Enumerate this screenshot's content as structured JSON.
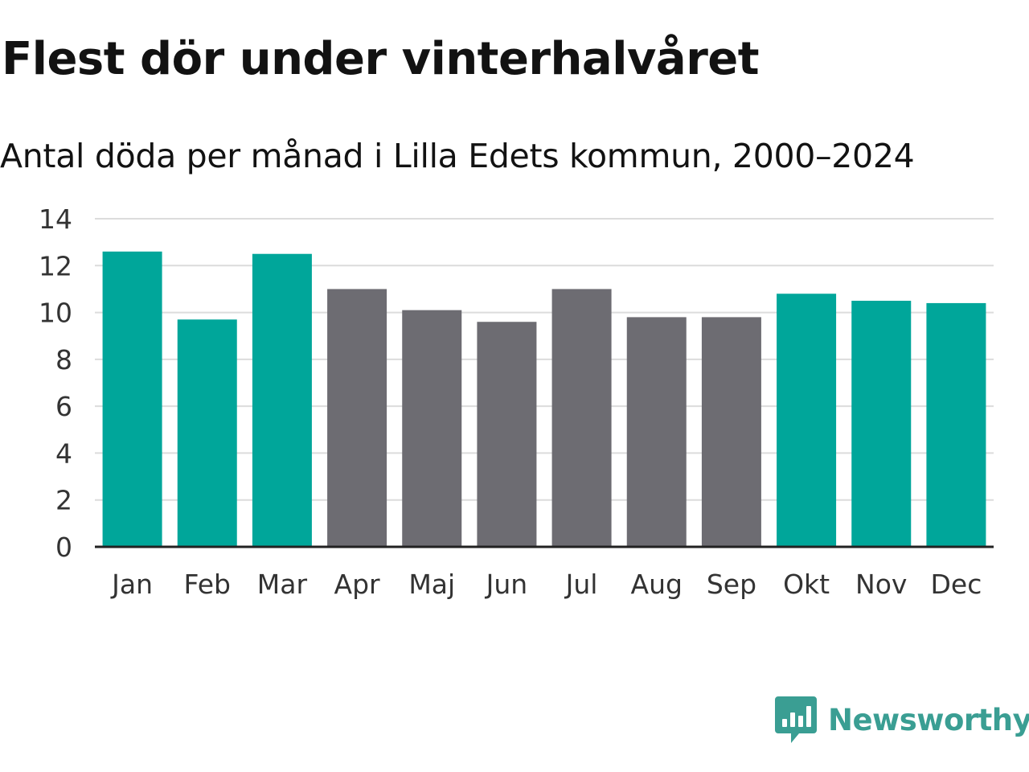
{
  "header": {
    "title": "Flest dör under vinterhalvåret",
    "subtitle": "Antal döda per månad i Lilla Edets kommun, 2000–2024"
  },
  "colors": {
    "winter": "#00a69a",
    "summer": "#6d6c72",
    "grid": "#dcdcdc",
    "axis": "#222222",
    "brand": "#3a9e93"
  },
  "chart_data": {
    "type": "bar",
    "title": "Flest dör under vinterhalvåret",
    "subtitle": "Antal döda per månad i Lilla Edets kommun, 2000–2024",
    "xlabel": "",
    "ylabel": "",
    "ylim": [
      0,
      14
    ],
    "yticks": [
      0,
      2,
      4,
      6,
      8,
      10,
      12,
      14
    ],
    "grid": true,
    "categories": [
      "Jan",
      "Feb",
      "Mar",
      "Apr",
      "Maj",
      "Jun",
      "Jul",
      "Aug",
      "Sep",
      "Okt",
      "Nov",
      "Dec"
    ],
    "values": [
      12.6,
      9.7,
      12.5,
      11.0,
      10.1,
      9.6,
      11.0,
      9.8,
      9.8,
      10.8,
      10.5,
      10.4
    ],
    "groups": [
      "winter",
      "winter",
      "winter",
      "summer",
      "summer",
      "summer",
      "summer",
      "summer",
      "summer",
      "winter",
      "winter",
      "winter"
    ]
  },
  "branding": {
    "logo_text": "Newsworthy",
    "logo_icon": "newsworthy-bar-chart-icon"
  }
}
